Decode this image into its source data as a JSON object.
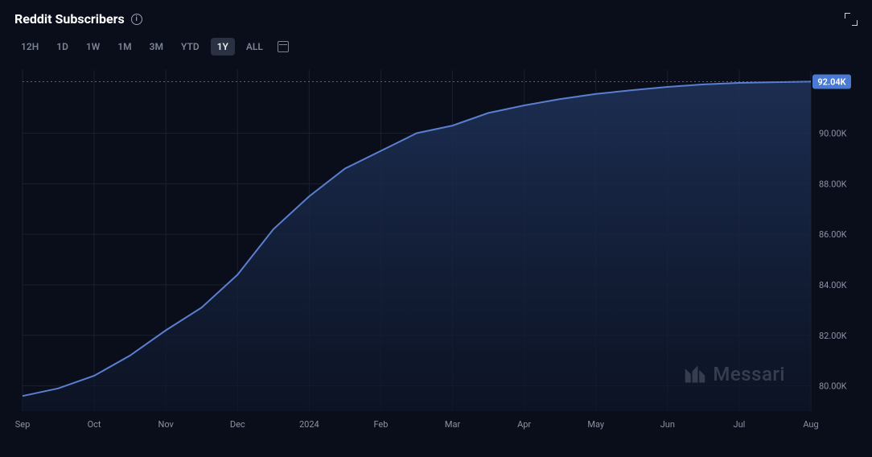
{
  "header": {
    "title": "Reddit Subscribers",
    "info_tooltip": "i"
  },
  "ranges": {
    "items": [
      "12H",
      "1D",
      "1W",
      "1M",
      "3M",
      "YTD",
      "1Y",
      "ALL"
    ],
    "active_index": 6
  },
  "chart": {
    "type": "area",
    "background_color": "#0a0e1a",
    "grid_color": "#1a2030",
    "dotted_line_color": "#5a6278",
    "line_color": "#5a7fd0",
    "area_top_color": "#1e3158",
    "area_bottom_color": "#0d1528",
    "text_color": "#8a92a6",
    "label_fontsize": 11,
    "current_value_label": "92.04K",
    "badge_color": "#4a7bd4",
    "y": {
      "min": 79000,
      "max": 92500,
      "ticks": [
        80000,
        82000,
        84000,
        86000,
        88000,
        90000,
        92040
      ],
      "tick_labels": [
        "80.00K",
        "82.00K",
        "84.00K",
        "86.00K",
        "88.00K",
        "90.00K",
        "92.04K"
      ]
    },
    "x": {
      "labels": [
        "Sep",
        "Oct",
        "Nov",
        "Dec",
        "2024",
        "Feb",
        "Mar",
        "Apr",
        "May",
        "Jun",
        "Jul",
        "Aug"
      ]
    },
    "series": [
      {
        "i": 0,
        "v": 79600
      },
      {
        "i": 1,
        "v": 79900
      },
      {
        "i": 2,
        "v": 80400
      },
      {
        "i": 3,
        "v": 81200
      },
      {
        "i": 4,
        "v": 82200
      },
      {
        "i": 5,
        "v": 83100
      },
      {
        "i": 6,
        "v": 84400
      },
      {
        "i": 7,
        "v": 86200
      },
      {
        "i": 8,
        "v": 87500
      },
      {
        "i": 9,
        "v": 88600
      },
      {
        "i": 10,
        "v": 89300
      },
      {
        "i": 11,
        "v": 90000
      },
      {
        "i": 12,
        "v": 90300
      },
      {
        "i": 13,
        "v": 90800
      },
      {
        "i": 14,
        "v": 91100
      },
      {
        "i": 15,
        "v": 91350
      },
      {
        "i": 16,
        "v": 91550
      },
      {
        "i": 17,
        "v": 91700
      },
      {
        "i": 18,
        "v": 91830
      },
      {
        "i": 19,
        "v": 91930
      },
      {
        "i": 20,
        "v": 91990
      },
      {
        "i": 21,
        "v": 92020
      },
      {
        "i": 22,
        "v": 92040
      }
    ]
  },
  "watermark": {
    "text": "Messari"
  }
}
